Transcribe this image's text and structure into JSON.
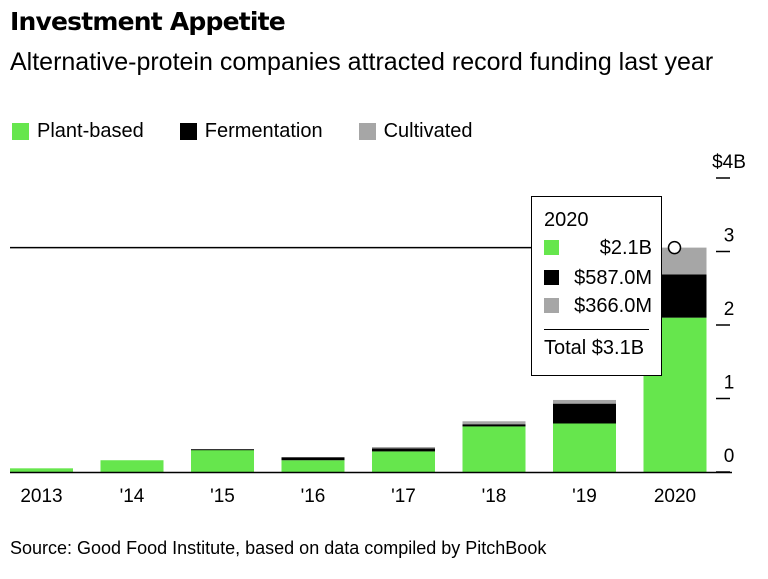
{
  "title": "Investment Appetite",
  "subtitle": "Alternative-protein companies attracted record funding last year",
  "source": "Source: Good Food Institute, based on data compiled by PitchBook",
  "colors": {
    "plant": "#66e64d",
    "fermentation": "#000000",
    "cultivated": "#a6a6a6"
  },
  "legend": [
    {
      "label": "Plant-based",
      "color": "#66e64d"
    },
    {
      "label": "Fermentation",
      "color": "#000000"
    },
    {
      "label": "Cultivated",
      "color": "#a6a6a6"
    }
  ],
  "tooltip": {
    "year": "2020",
    "rows": [
      {
        "value": "$2.1B",
        "color": "#66e64d"
      },
      {
        "value": "$587.0M",
        "color": "#000000"
      },
      {
        "value": "$366.0M",
        "color": "#a6a6a6"
      }
    ],
    "total": "Total $3.1B"
  },
  "chart_data": {
    "type": "bar",
    "stacked": true,
    "categories": [
      "2013",
      "'14",
      "'15",
      "'16",
      "'17",
      "'18",
      "'19",
      "2020"
    ],
    "series": [
      {
        "name": "Plant-based",
        "values": [
          0.05,
          0.16,
          0.3,
          0.16,
          0.28,
          0.62,
          0.66,
          2.1
        ]
      },
      {
        "name": "Fermentation",
        "values": [
          0.0,
          0.0,
          0.01,
          0.04,
          0.04,
          0.03,
          0.27,
          0.587
        ]
      },
      {
        "name": "Cultivated",
        "values": [
          0.0,
          0.0,
          0.0,
          0.0,
          0.02,
          0.04,
          0.05,
          0.366
        ]
      }
    ],
    "y_ticks": [
      "0",
      "1",
      "2",
      "3",
      "$4B"
    ],
    "y_tick_values": [
      0,
      1,
      2,
      3,
      4
    ],
    "ylim": [
      0,
      4
    ],
    "ylabel_position": "right",
    "grid": false,
    "legend_position": "top-left",
    "highlight_category": "2020"
  }
}
